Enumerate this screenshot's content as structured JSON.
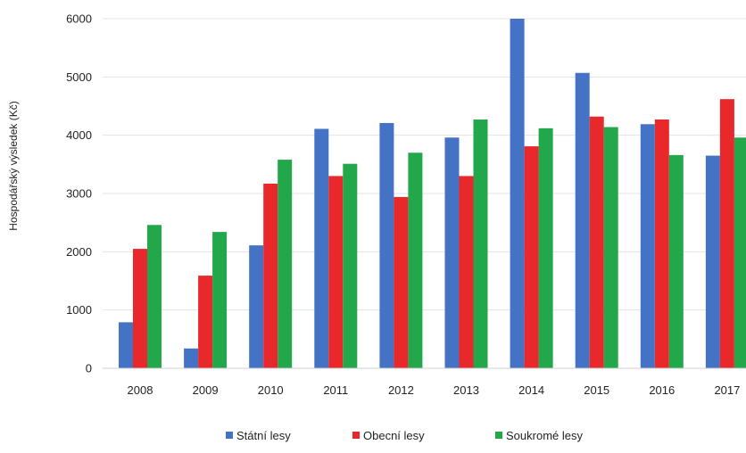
{
  "chart_data": {
    "type": "bar",
    "categories": [
      "2008",
      "2009",
      "2010",
      "2011",
      "2012",
      "2013",
      "2014",
      "2015",
      "2016",
      "2017"
    ],
    "series": [
      {
        "name": "Státní lesy",
        "color": "#4472C4",
        "values": [
          790,
          340,
          2110,
          4110,
          4210,
          3960,
          6000,
          5070,
          4190,
          3650
        ]
      },
      {
        "name": "Obecní lesy",
        "color": "#E8282B",
        "values": [
          2050,
          1590,
          3170,
          3300,
          2940,
          3300,
          3810,
          4320,
          4270,
          4620
        ]
      },
      {
        "name": "Soukromé lesy",
        "color": "#22A84A",
        "values": [
          2460,
          2340,
          3580,
          3510,
          3700,
          4270,
          4120,
          4140,
          3660,
          3960
        ]
      }
    ],
    "ylabel": "Hospodářský výsledek (Kč)",
    "xlabel": "",
    "ylim": [
      0,
      6000
    ],
    "yticks": [
      0,
      1000,
      2000,
      3000,
      4000,
      5000,
      6000
    ],
    "grid": true,
    "legend": "bottom"
  }
}
